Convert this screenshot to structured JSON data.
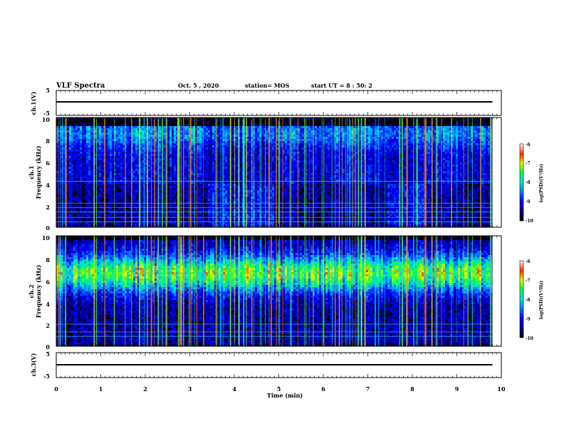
{
  "header": {
    "title": "VLF Spectra",
    "date": "Oct. 5 , 2020",
    "station": "station= MOS",
    "start": "start  UT =  8 : 50: 2"
  },
  "chart_data": [
    {
      "type": "line",
      "panel": "ch1-waveform",
      "ylabel": "ch.1(V)",
      "ylim": [
        -5,
        5
      ],
      "yticks": [
        "5",
        "-5"
      ],
      "x": [
        0,
        9.8
      ],
      "values": [
        0,
        0
      ]
    },
    {
      "type": "heatmap",
      "panel": "ch1-spectrogram",
      "ylabel_line1": "ch.1",
      "ylabel_line2": "Frequency (kHz)",
      "ylim": [
        0,
        10
      ],
      "yticks": [
        "0",
        "2",
        "4",
        "6",
        "8",
        "10"
      ],
      "colorbar": {
        "label": "log(PSD)(V²/Hz)",
        "range": [
          -10,
          -6
        ],
        "ticks": [
          "-6",
          "-7",
          "-8",
          "-9",
          "-10"
        ]
      },
      "band_top_khz": 8.9,
      "horizontal_lines_khz": [
        0.5,
        0.9,
        1.4,
        1.8,
        2.2,
        4.2
      ]
    },
    {
      "type": "heatmap",
      "panel": "ch2-spectrogram",
      "ylabel_line1": "ch.2",
      "ylabel_line2": "Frequency (kHz)",
      "ylim": [
        0,
        10
      ],
      "yticks": [
        "0",
        "2",
        "4",
        "6",
        "8",
        "10"
      ],
      "colorbar": {
        "label": "log(PSD)(V²/Hz)",
        "range": [
          -10,
          -6
        ],
        "ticks": [
          "-6",
          "-7",
          "-8",
          "-9",
          "-10"
        ]
      },
      "band_khz": [
        4.5,
        9.3
      ],
      "horizontal_lines_khz": [
        0.9,
        1.3,
        2.0
      ]
    },
    {
      "type": "line",
      "panel": "ch3-waveform",
      "ylabel": "ch.3(V)",
      "ylim": [
        -5,
        5
      ],
      "yticks": [
        "5",
        "-5"
      ],
      "x": [
        0,
        9.8
      ],
      "values": [
        0,
        0
      ]
    }
  ],
  "xaxis": {
    "label": "Time  (min)",
    "range": [
      0,
      10
    ],
    "ticks": [
      "0",
      "1",
      "2",
      "3",
      "4",
      "5",
      "6",
      "7",
      "8",
      "9",
      "10"
    ]
  }
}
